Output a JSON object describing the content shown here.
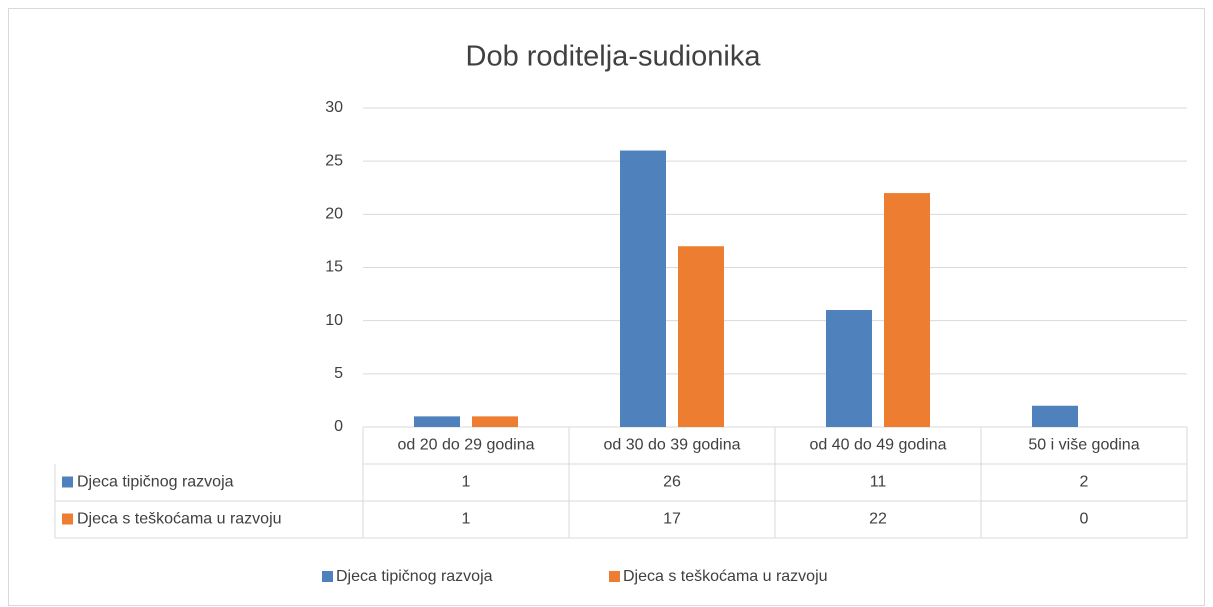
{
  "chart_data": {
    "type": "bar",
    "title": "Dob roditelja-sudionika",
    "categories": [
      "od 20 do 29 godina",
      "od 30 do 39 godina",
      "od 40 do 49 godina",
      "50 i više godina"
    ],
    "series": [
      {
        "name": "Djeca tipičnog razvoja",
        "color": "#4f81bd",
        "values": [
          1,
          26,
          11,
          2
        ]
      },
      {
        "name": "Djeca s teškoćama u razvoju",
        "color": "#ed7d31",
        "values": [
          1,
          17,
          22,
          0
        ]
      }
    ],
    "ylim": [
      0,
      30
    ],
    "yticks": [
      0,
      5,
      10,
      15,
      20,
      25,
      30
    ],
    "grid": true,
    "legend": "bottom",
    "data_table": true
  }
}
